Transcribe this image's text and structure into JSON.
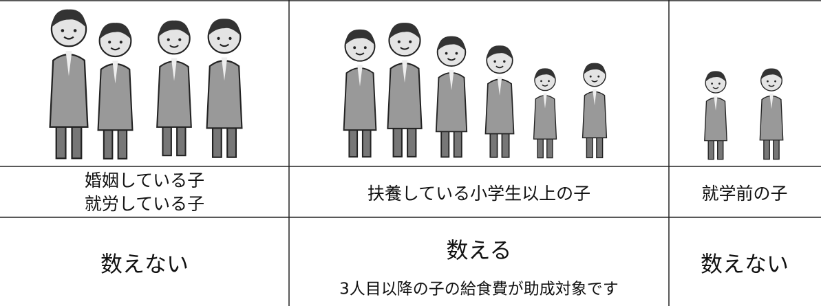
{
  "table": {
    "labels": [
      [
        "婚姻している子",
        "就労している子"
      ],
      [
        "扶養している小学生以上の子"
      ],
      [
        "就学前の子"
      ]
    ],
    "results": [
      {
        "main": "数えない"
      },
      {
        "main": "数える",
        "note": "3人目以降の子の給食費が助成対象です"
      },
      {
        "main": "数えない"
      }
    ]
  }
}
